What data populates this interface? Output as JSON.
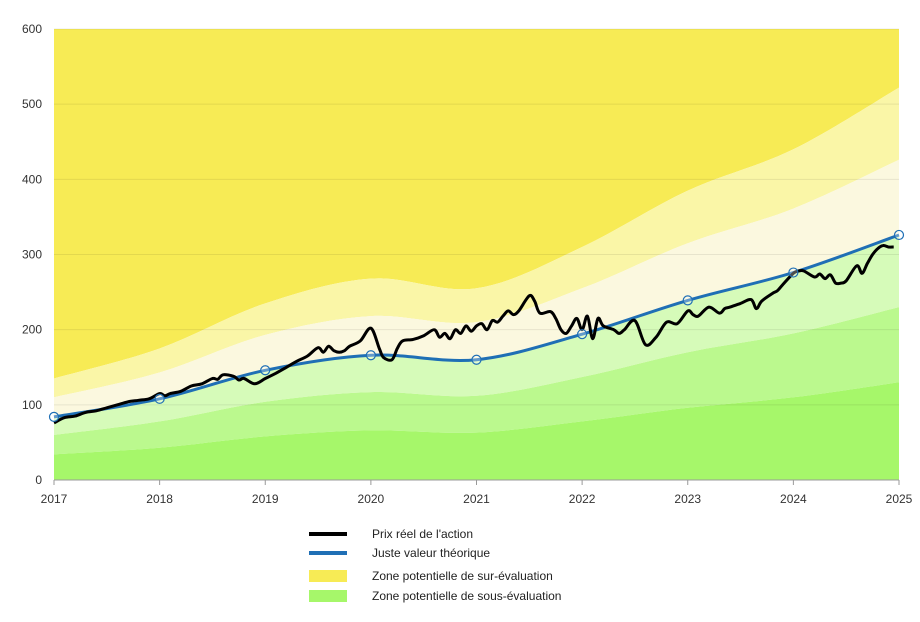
{
  "chart_data": {
    "type": "area",
    "title": "",
    "xlabel": "",
    "ylabel": "",
    "xlim": [
      2017,
      2025
    ],
    "ylim": [
      0,
      600
    ],
    "x_ticks": [
      "2017",
      "2018",
      "2019",
      "2020",
      "2021",
      "2022",
      "2023",
      "2024",
      "2025"
    ],
    "y_ticks": [
      "0",
      "100",
      "200",
      "300",
      "400",
      "500",
      "600"
    ],
    "grid": true,
    "legend_position": "bottom-center",
    "series": [
      {
        "name": "Prix réel de l'action",
        "color": "#000000",
        "x": [
          2017.0,
          2017.1,
          2017.2,
          2017.3,
          2017.4,
          2017.5,
          2017.6,
          2017.7,
          2017.8,
          2017.9,
          2018.0,
          2018.05,
          2018.1,
          2018.2,
          2018.3,
          2018.4,
          2018.5,
          2018.55,
          2018.6,
          2018.7,
          2018.75,
          2018.8,
          2018.9,
          2019.0,
          2019.1,
          2019.2,
          2019.3,
          2019.4,
          2019.5,
          2019.55,
          2019.6,
          2019.65,
          2019.7,
          2019.75,
          2019.8,
          2019.9,
          2020.0,
          2020.08,
          2020.12,
          2020.2,
          2020.25,
          2020.3,
          2020.4,
          2020.5,
          2020.6,
          2020.65,
          2020.7,
          2020.75,
          2020.8,
          2020.85,
          2020.9,
          2020.95,
          2021.0,
          2021.05,
          2021.1,
          2021.15,
          2021.2,
          2021.25,
          2021.3,
          2021.35,
          2021.4,
          2021.5,
          2021.55,
          2021.6,
          2021.7,
          2021.75,
          2021.8,
          2021.85,
          2021.9,
          2021.95,
          2022.0,
          2022.05,
          2022.1,
          2022.15,
          2022.2,
          2022.3,
          2022.35,
          2022.4,
          2022.5,
          2022.6,
          2022.7,
          2022.8,
          2022.9,
          2023.0,
          2023.05,
          2023.1,
          2023.2,
          2023.3,
          2023.35,
          2023.4,
          2023.5,
          2023.6,
          2023.65,
          2023.7,
          2023.8,
          2023.85,
          2023.9,
          2024.0,
          2024.05,
          2024.1,
          2024.2,
          2024.25,
          2024.3,
          2024.35,
          2024.4,
          2024.45,
          2024.5,
          2024.6,
          2024.65,
          2024.7,
          2024.75,
          2024.8,
          2024.85,
          2024.9,
          2024.95
        ],
        "values": [
          76,
          83,
          85,
          90,
          92,
          96,
          100,
          104,
          106,
          108,
          115,
          112,
          115,
          118,
          125,
          128,
          135,
          134,
          140,
          138,
          133,
          135,
          128,
          135,
          142,
          150,
          158,
          165,
          176,
          170,
          178,
          172,
          170,
          172,
          178,
          185,
          202,
          175,
          163,
          160,
          175,
          185,
          187,
          192,
          200,
          190,
          195,
          188,
          200,
          195,
          205,
          198,
          205,
          208,
          200,
          212,
          210,
          218,
          225,
          220,
          225,
          245,
          238,
          222,
          224,
          215,
          200,
          195,
          205,
          215,
          200,
          218,
          188,
          215,
          205,
          200,
          195,
          200,
          212,
          180,
          190,
          210,
          208,
          225,
          220,
          218,
          230,
          222,
          228,
          230,
          235,
          240,
          228,
          238,
          248,
          252,
          260,
          275,
          278,
          278,
          270,
          274,
          268,
          273,
          262,
          262,
          265,
          285,
          275,
          288,
          300,
          308,
          312,
          310,
          310
        ]
      },
      {
        "name": "Juste valeur théorique",
        "color": "#1f6fb5",
        "x": [
          2017,
          2018,
          2019,
          2020,
          2021,
          2022,
          2023,
          2024,
          2025
        ],
        "values": [
          84,
          108,
          146,
          166,
          160,
          194,
          239,
          276,
          326
        ]
      },
      {
        "name": "Zone potentielle de sur-évaluation",
        "color": "#f7eb55",
        "x": [
          2017,
          2018,
          2019,
          2020,
          2021,
          2022,
          2023,
          2024,
          2025
        ],
        "values": [
          135,
          175,
          235,
          268,
          255,
          310,
          385,
          440,
          522
        ]
      },
      {
        "name": "Zone potentielle de sous-évaluation",
        "color": "#a6f76a",
        "x": [
          2017,
          2018,
          2019,
          2020,
          2021,
          2022,
          2023,
          2024,
          2025
        ],
        "values": [
          34,
          43,
          58,
          66,
          63,
          78,
          96,
          110,
          130
        ]
      }
    ],
    "bands": {
      "x": [
        2017,
        2018,
        2019,
        2020,
        2021,
        2022,
        2023,
        2024,
        2025
      ],
      "upper_2": [
        135,
        175,
        235,
        268,
        255,
        310,
        385,
        440,
        522
      ],
      "upper_1": [
        110,
        143,
        193,
        218,
        210,
        255,
        315,
        361,
        426
      ],
      "lower_1": [
        60,
        78,
        104,
        117,
        112,
        137,
        170,
        195,
        230
      ],
      "lower_2": [
        34,
        43,
        58,
        66,
        63,
        78,
        96,
        110,
        130
      ],
      "colors": {
        "top": "#f7eb55",
        "upper_mid": "#faf6a7",
        "upper_near": "#fbf8df",
        "lower_near": "#d6fbb9",
        "lower_mid": "#bbf98e",
        "bottom": "#a6f76a"
      }
    }
  }
}
